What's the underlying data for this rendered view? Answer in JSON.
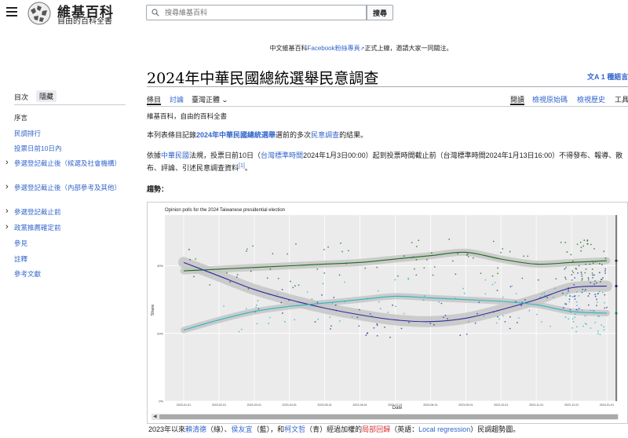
{
  "header": {
    "logo_name": "維基百科",
    "logo_tagline": "自由的百科全書",
    "search_placeholder": "搜尋維基百科",
    "search_button": "搜尋"
  },
  "sitenotice": {
    "before": "中文維基百科",
    "link": "Facebook粉絲專頁",
    "after": "正式上線，邀請大家一同關注。"
  },
  "page": {
    "title": "2024年中華民國總統選舉民意調查",
    "languages": "1 種語言"
  },
  "tabs": {
    "article": "條目",
    "talk": "討論",
    "variant": "臺灣正體",
    "read": "閱讀",
    "view_source": "檢視原始碼",
    "history": "檢視歷史",
    "tools": "工具"
  },
  "toc": {
    "header": "目次",
    "hide": "隱藏",
    "items": [
      {
        "label": "序言"
      },
      {
        "label": "民調排行"
      },
      {
        "label": "投票日前10日內"
      },
      {
        "label": "參選登記截止後（候選及社會機構）"
      },
      {
        "label": "參選登記截止後（內部參考及其他）"
      },
      {
        "label": "參選登記截止前"
      },
      {
        "label": "政黨推薦確定前"
      },
      {
        "label": "參見"
      },
      {
        "label": "註釋"
      },
      {
        "label": "參考文獻"
      }
    ]
  },
  "content": {
    "tagline": "維基百科，自由的百科全書",
    "p1_a": "本列表條目記錄",
    "p1_link1": "2024年中華民國總統選舉",
    "p1_b": "選前的多次",
    "p1_link2": "民意調查",
    "p1_c": "的結果。",
    "p2_a": "依據",
    "p2_link1": "中華民國",
    "p2_b": "法規，投票日前10日（",
    "p2_link2": "台灣標準時間",
    "p2_c": "2024年1月3日00:00）起到投票時間截止前（台灣標準時間2024年1月13日16:00）不得發布、報導、散布、評論、引述民意調查資料",
    "p2_ref": "[1]",
    "p2_d": "。",
    "trend_label": "趨勢："
  },
  "caption": {
    "a": "2023年以來",
    "link1": "賴清德",
    "b": "（綠）、",
    "link2": "侯友宜",
    "c": "（藍），和",
    "link3": "柯文哲",
    "d": "（青）經過加權的",
    "link4": "局部回歸",
    "e": "（英語：",
    "link5": "Local regression",
    "f": "）民調趨勢圖。"
  },
  "chart_data": {
    "type": "scatter",
    "title": "Opinion polls for the 2024 Taiwanese presidential election",
    "xlabel": "Date",
    "ylabel": "Share",
    "x_ticks": [
      "2023-01-01",
      "2023-02-01",
      "2023-03-01",
      "2023-04-01",
      "2023-05-01",
      "2023-06-01",
      "2023-07-01",
      "2023-08-01",
      "2023-09-01",
      "2023-10-01",
      "2023-11-01",
      "2023-12-01",
      "2024-01-01"
    ],
    "y_ticks": [
      "0%",
      "20%",
      "40%"
    ],
    "ylim": [
      0,
      0.55
    ],
    "series": [
      {
        "color": "#1b6b1b",
        "trend": [
          [
            0,
            0.385
          ],
          [
            1,
            0.39
          ],
          [
            2,
            0.395
          ],
          [
            3,
            0.4
          ],
          [
            4,
            0.405
          ],
          [
            5,
            0.41
          ],
          [
            6,
            0.42
          ],
          [
            7,
            0.43
          ],
          [
            8,
            0.44
          ],
          [
            9,
            0.42
          ],
          [
            10,
            0.405
          ],
          [
            11,
            0.41
          ],
          [
            12,
            0.415
          ]
        ]
      },
      {
        "color": "#2b2b9e",
        "trend": [
          [
            0,
            0.41
          ],
          [
            1,
            0.37
          ],
          [
            2,
            0.33
          ],
          [
            3,
            0.3
          ],
          [
            4,
            0.275
          ],
          [
            5,
            0.255
          ],
          [
            6,
            0.24
          ],
          [
            7,
            0.235
          ],
          [
            8,
            0.245
          ],
          [
            9,
            0.27
          ],
          [
            10,
            0.3
          ],
          [
            11,
            0.335
          ],
          [
            12,
            0.34
          ]
        ]
      },
      {
        "color": "#2ab6c4",
        "trend": [
          [
            0,
            0.21
          ],
          [
            1,
            0.24
          ],
          [
            2,
            0.265
          ],
          [
            3,
            0.28
          ],
          [
            4,
            0.29
          ],
          [
            5,
            0.3
          ],
          [
            6,
            0.31
          ],
          [
            7,
            0.305
          ],
          [
            8,
            0.3
          ],
          [
            9,
            0.295
          ],
          [
            10,
            0.285
          ],
          [
            11,
            0.265
          ],
          [
            12,
            0.26
          ]
        ]
      }
    ]
  }
}
